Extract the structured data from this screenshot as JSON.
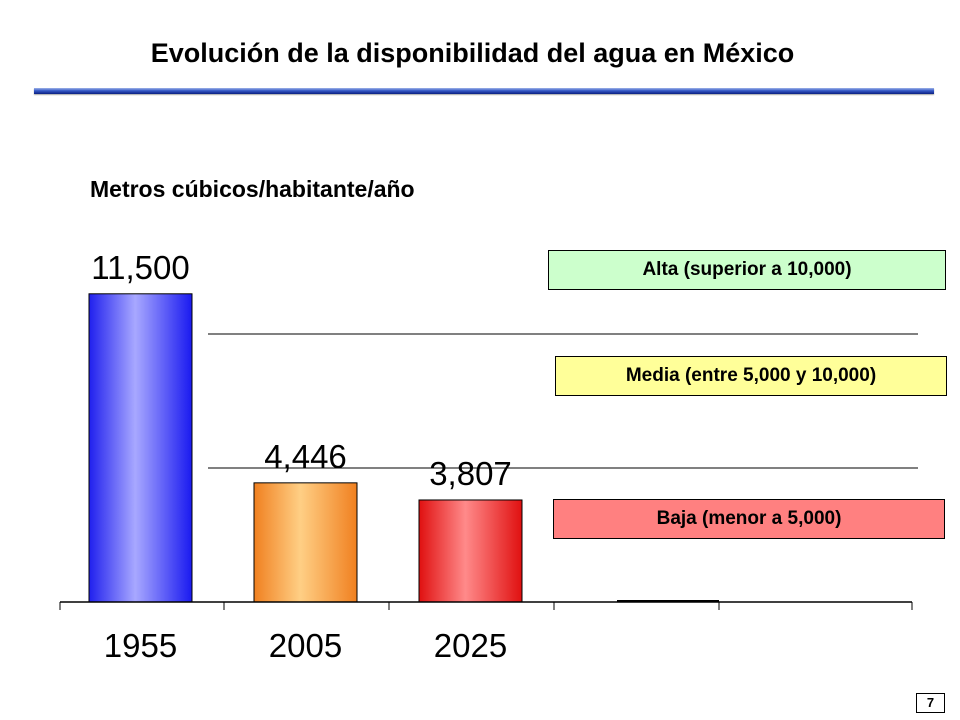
{
  "header": {
    "title": "Evolución de la disponibilidad del agua en México"
  },
  "subtitle": "Metros cúbicos/habitante/año",
  "chart_data": {
    "type": "bar",
    "categories": [
      "1955",
      "2005",
      "2025"
    ],
    "values": [
      11500,
      4446,
      3807
    ],
    "value_labels": [
      "11,500",
      "4,446",
      "3,807"
    ],
    "bar_colors": [
      "#3333ff",
      "#ff9933",
      "#ff3333"
    ],
    "thresholds": [
      5000,
      10000
    ],
    "threshold_labels": {
      "high": "Alta (superior a 10,000)",
      "medium": "Media (entre 5,000 y 10,000)",
      "low": "Baja (menor a 5,000)"
    },
    "zone_colors": {
      "high": "#ccffcc",
      "medium": "#ffff99",
      "low": "#ff8080"
    },
    "ylim": [
      0,
      12500
    ],
    "grid": false
  },
  "footer": {
    "page_number": "7"
  }
}
